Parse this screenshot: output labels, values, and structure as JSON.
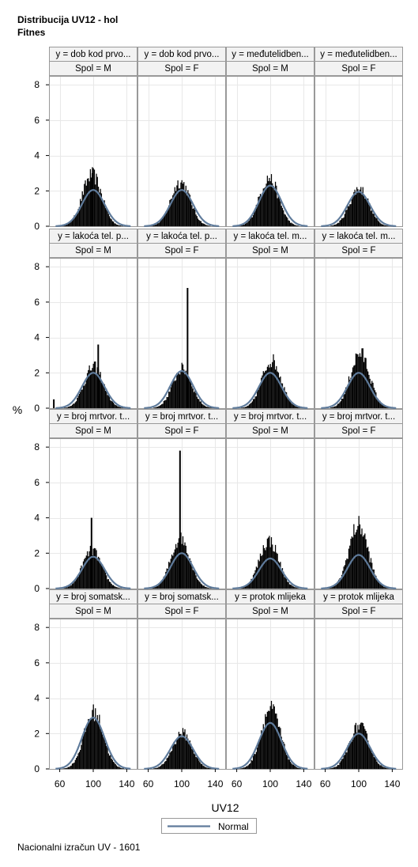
{
  "title": {
    "line1": "Distribucija UV12 - hol",
    "line2": "Fitnes"
  },
  "footnote": "Nacionalni izračun UV - 1601",
  "colors": {
    "histogram": "#000000",
    "normal_curve": "#5f7b9b",
    "header_bg": "#f2f2f2",
    "panel_border": "#999999",
    "grid": "#e8e8e8"
  },
  "chart_data": {
    "type": "histogram-panel",
    "xlabel": "UV12",
    "ylabel": "%",
    "xticks": [
      60,
      100,
      140
    ],
    "yticks": [
      0,
      2,
      4,
      6,
      8
    ],
    "xlim": [
      50,
      150
    ],
    "ylim": [
      0,
      8.5
    ],
    "legend": {
      "entries": [
        "Normal"
      ],
      "placement": "bottom-center"
    },
    "rows": [
      {
        "panels": [
          {
            "y_label": "y = dob kod prvo...",
            "spol": "Spol = M",
            "hist_peak": 3.0,
            "hist_center": 98,
            "normal_peak": 2.05,
            "normal_mean": 100,
            "spikes": [
              {
                "x": 98,
                "y": 3.0
              }
            ]
          },
          {
            "y_label": "y = dob kod prvo...",
            "spol": "Spol = F",
            "hist_peak": 2.6,
            "hist_center": 98,
            "normal_peak": 2.05,
            "normal_mean": 100,
            "spikes": []
          },
          {
            "y_label": "y = međutelidben...",
            "spol": "Spol = M",
            "hist_peak": 2.8,
            "hist_center": 98,
            "normal_peak": 2.3,
            "normal_mean": 100,
            "spikes": []
          },
          {
            "y_label": "y = međutelidben...",
            "spol": "Spol = F",
            "hist_peak": 2.2,
            "hist_center": 100,
            "normal_peak": 1.95,
            "normal_mean": 100,
            "spikes": []
          }
        ]
      },
      {
        "panels": [
          {
            "y_label": "y = lakoća tel. p...",
            "spol": "Spol = M",
            "hist_peak": 2.4,
            "hist_center": 100,
            "normal_peak": 2.0,
            "normal_mean": 100,
            "spikes": [
              {
                "x": 105,
                "y": 3.6
              },
              {
                "x": 52,
                "y": 0.5
              }
            ]
          },
          {
            "y_label": "y = lakoća tel. p...",
            "spol": "Spol = F",
            "hist_peak": 2.3,
            "hist_center": 100,
            "normal_peak": 2.1,
            "normal_mean": 100,
            "spikes": [
              {
                "x": 106,
                "y": 6.8
              }
            ]
          },
          {
            "y_label": "y = lakoća tel. m...",
            "spol": "Spol = M",
            "hist_peak": 2.8,
            "hist_center": 101,
            "normal_peak": 2.0,
            "normal_mean": 100,
            "spikes": []
          },
          {
            "y_label": "y = lakoća tel. m...",
            "spol": "Spol = F",
            "hist_peak": 3.2,
            "hist_center": 101,
            "normal_peak": 2.0,
            "normal_mean": 100,
            "spikes": []
          }
        ]
      },
      {
        "panels": [
          {
            "y_label": "y = broj mrtvor. t...",
            "spol": "Spol = M",
            "hist_peak": 2.2,
            "hist_center": 98,
            "normal_peak": 1.8,
            "normal_mean": 100,
            "spikes": [
              {
                "x": 97,
                "y": 4.0
              }
            ]
          },
          {
            "y_label": "y = broj mrtvor. t...",
            "spol": "Spol = F",
            "hist_peak": 2.9,
            "hist_center": 98,
            "normal_peak": 2.0,
            "normal_mean": 100,
            "spikes": [
              {
                "x": 97,
                "y": 7.8
              }
            ]
          },
          {
            "y_label": "y = broj mrtvor. t...",
            "spol": "Spol = M",
            "hist_peak": 2.8,
            "hist_center": 98,
            "normal_peak": 1.7,
            "normal_mean": 100,
            "spikes": []
          },
          {
            "y_label": "y = broj mrtvor. t...",
            "spol": "Spol = F",
            "hist_peak": 3.7,
            "hist_center": 99,
            "normal_peak": 1.9,
            "normal_mean": 100,
            "spikes": []
          }
        ]
      },
      {
        "panels": [
          {
            "y_label": "y = broj somatsk...",
            "spol": "Spol = M",
            "hist_peak": 3.3,
            "hist_center": 100,
            "normal_peak": 2.9,
            "normal_mean": 100,
            "spikes": []
          },
          {
            "y_label": "y = broj somatsk...",
            "spol": "Spol = F",
            "hist_peak": 2.1,
            "hist_center": 100,
            "normal_peak": 1.85,
            "normal_mean": 100,
            "spikes": []
          },
          {
            "y_label": "y = protok mlijeka",
            "spol": "Spol = M",
            "hist_peak": 3.5,
            "hist_center": 100,
            "normal_peak": 2.6,
            "normal_mean": 100,
            "spikes": []
          },
          {
            "y_label": "y = protok mlijeka",
            "spol": "Spol = F",
            "hist_peak": 2.5,
            "hist_center": 100,
            "normal_peak": 2.0,
            "normal_mean": 100,
            "spikes": []
          }
        ]
      }
    ]
  }
}
